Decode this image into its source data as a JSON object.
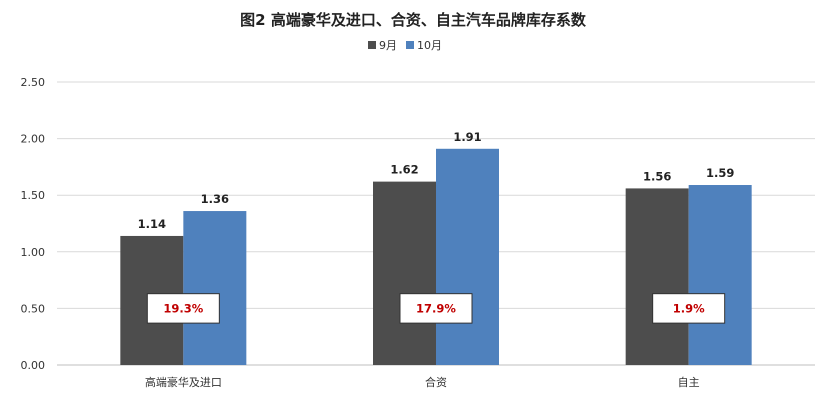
{
  "chart_data": {
    "type": "bar",
    "title": "图2  高端豪华及进口、合资、自主汽车品牌库存系数",
    "categories": [
      "高端豪华及进口",
      "合资",
      "自主"
    ],
    "series": [
      {
        "name": "9月",
        "values": [
          1.14,
          1.62,
          1.56
        ],
        "color": "#4d4d4d"
      },
      {
        "name": "10月",
        "values": [
          1.36,
          1.91,
          1.59
        ],
        "color": "#4f81bd"
      }
    ],
    "ylim": [
      0,
      2.5
    ],
    "yticks": [
      "0.00",
      "0.50",
      "1.00",
      "1.50",
      "2.00",
      "2.50"
    ],
    "data_labels": [
      [
        "1.14",
        "1.62",
        "1.56"
      ],
      [
        "1.36",
        "1.91",
        "1.59"
      ]
    ],
    "annotations": [
      "19.3%",
      "17.9%",
      "1.9%"
    ],
    "annotation_color": "#c00000",
    "grid": true,
    "legend_position": "top-center",
    "xlabel": "",
    "ylabel": ""
  }
}
